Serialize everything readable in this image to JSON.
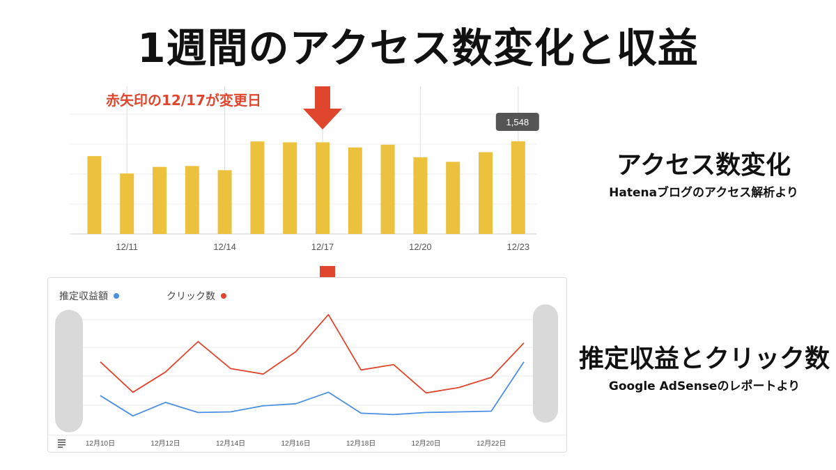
{
  "title": "1週間のアクセス数変化と収益",
  "annotation": "赤矢印の12/17が変更日",
  "side": {
    "chart1_title": "アクセス数変化",
    "chart1_subtitle": "Hatenaブログのアクセス解析より",
    "chart2_title": "推定収益とクリック数",
    "chart2_subtitle": "Google AdSenseのレポートより"
  },
  "colors": {
    "bar": "#ecc13e",
    "arrow": "#e0462e",
    "revenue": "#4a8fe3",
    "clicks": "#e0462e"
  },
  "chart_data": [
    {
      "type": "bar",
      "x": [
        "12/10",
        "12/11",
        "12/12",
        "12/13",
        "12/14",
        "12/15",
        "12/16",
        "12/17",
        "12/18",
        "12/19",
        "12/20",
        "12/21",
        "12/22",
        "12/23"
      ],
      "x_tick_labels": [
        "12/11",
        "12/14",
        "12/17",
        "12/20",
        "12/23"
      ],
      "x_tick_dates": [
        "12/11",
        "12/14",
        "12/17",
        "12/20",
        "12/23"
      ],
      "values": [
        1300,
        1010,
        1120,
        1135,
        1065,
        1545,
        1530,
        1530,
        1445,
        1490,
        1280,
        1205,
        1365,
        1548
      ],
      "tooltip": {
        "x": "12/23",
        "text": "1,548"
      },
      "ylim": [
        0,
        2000
      ],
      "grid": true,
      "marker": {
        "x": "12/17",
        "label": "赤矢印の12/17が変更日"
      }
    },
    {
      "type": "line",
      "x": [
        "12月10日",
        "12月11日",
        "12月12日",
        "12月13日",
        "12月14日",
        "12月15日",
        "12月16日",
        "12月17日",
        "12月18日",
        "12月19日",
        "12月20日",
        "12月21日",
        "12月22日",
        "12月23日"
      ],
      "x_tick_labels": [
        "12月10日",
        "12月12日",
        "12月14日",
        "12月16日",
        "12月18日",
        "12月20日",
        "12月22日"
      ],
      "x_tick_dates": [
        "12月10日",
        "12月12日",
        "12月14日",
        "12月16日",
        "12月18日",
        "12月20日",
        "12月22日"
      ],
      "ylim": [
        0,
        100
      ],
      "grid": true,
      "legend": "top-left",
      "series": [
        {
          "name": "推定収益額",
          "values": [
            20,
            5,
            15,
            7.5,
            8,
            12.5,
            14,
            22.5,
            7,
            6,
            7.5,
            8,
            8.5,
            45
          ]
        },
        {
          "name": "クリック数",
          "values": [
            45,
            22.5,
            37.5,
            60,
            40,
            36,
            52.5,
            80,
            39,
            43,
            22,
            26,
            33.5,
            59
          ]
        }
      ]
    }
  ]
}
